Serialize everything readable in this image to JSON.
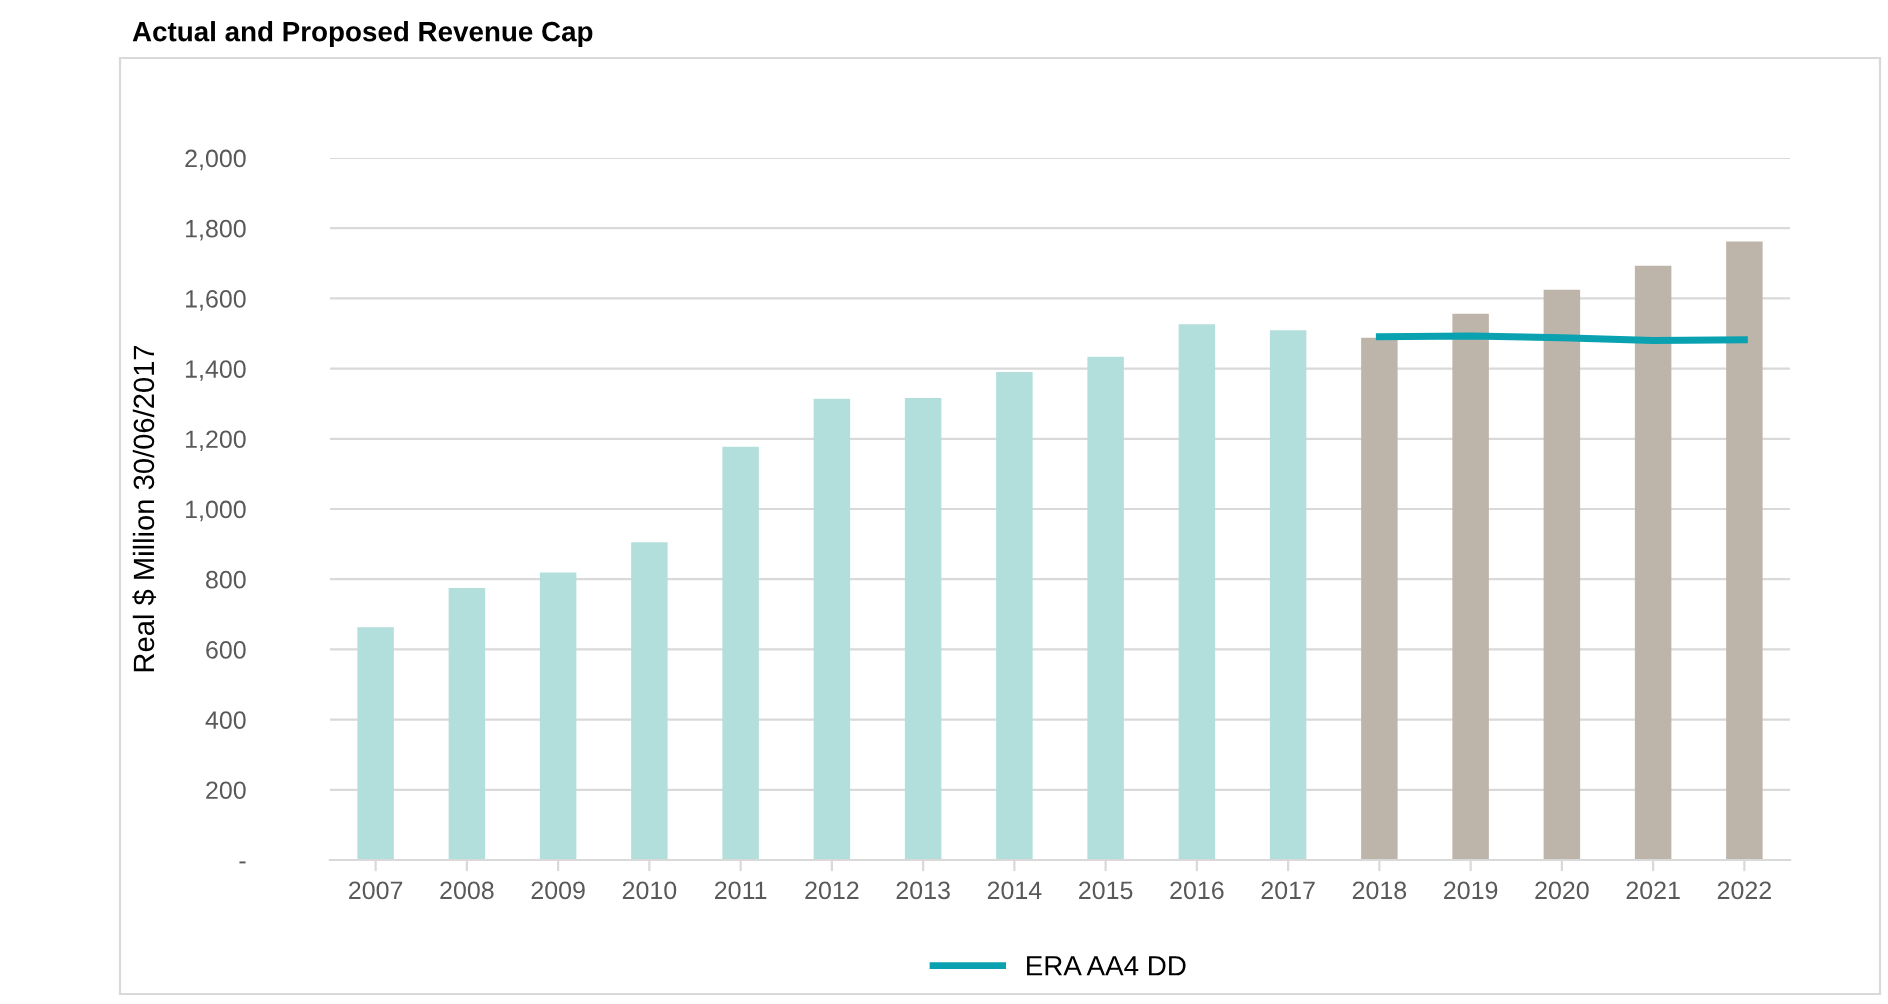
{
  "chart_data": {
    "type": "bar",
    "title": "Actual and Proposed Revenue Cap",
    "ylabel": "Real $ Million 30/06/2017",
    "categories": [
      "2007",
      "2008",
      "2009",
      "2010",
      "2011",
      "2012",
      "2013",
      "2014",
      "2015",
      "2016",
      "2017",
      "2018",
      "2019",
      "2020",
      "2021",
      "2022"
    ],
    "series": [
      {
        "values": [
          663,
          775,
          819,
          905,
          1177,
          1314,
          1316,
          1390,
          1434,
          1526,
          1509,
          1488,
          1556,
          1625,
          1693,
          1762
        ],
        "colors": [
          "#b2dfdb",
          "#b2dfdb",
          "#b2dfdb",
          "#b2dfdb",
          "#b2dfdb",
          "#b2dfdb",
          "#b2dfdb",
          "#b2dfdb",
          "#b2dfdb",
          "#b2dfdb",
          "#b2dfdb",
          "#beb5aa",
          "#beb5aa",
          "#beb5aa",
          "#beb5aa",
          "#beb5aa"
        ]
      },
      {
        "type": "line",
        "name": "ERA AA4 DD",
        "color": "#0aa2b0",
        "values": [
          null,
          null,
          null,
          null,
          null,
          null,
          null,
          null,
          null,
          null,
          null,
          1491,
          1493,
          1488,
          1480,
          1482
        ]
      }
    ],
    "ylim": [
      0,
      2000
    ],
    "yticks": [
      {
        "value": 0,
        "label": "-"
      },
      {
        "value": 200,
        "label": "200"
      },
      {
        "value": 400,
        "label": "400"
      },
      {
        "value": 600,
        "label": "600"
      },
      {
        "value": 800,
        "label": "800"
      },
      {
        "value": 1000,
        "label": "1,000"
      },
      {
        "value": 1200,
        "label": "1,200"
      },
      {
        "value": 1400,
        "label": "1,400"
      },
      {
        "value": 1600,
        "label": "1,600"
      },
      {
        "value": 1800,
        "label": "1,800"
      },
      {
        "value": 2000,
        "label": "2,000"
      }
    ],
    "grid": "y",
    "legend": "bottom",
    "marker": "none",
    "line_style": "solid"
  }
}
